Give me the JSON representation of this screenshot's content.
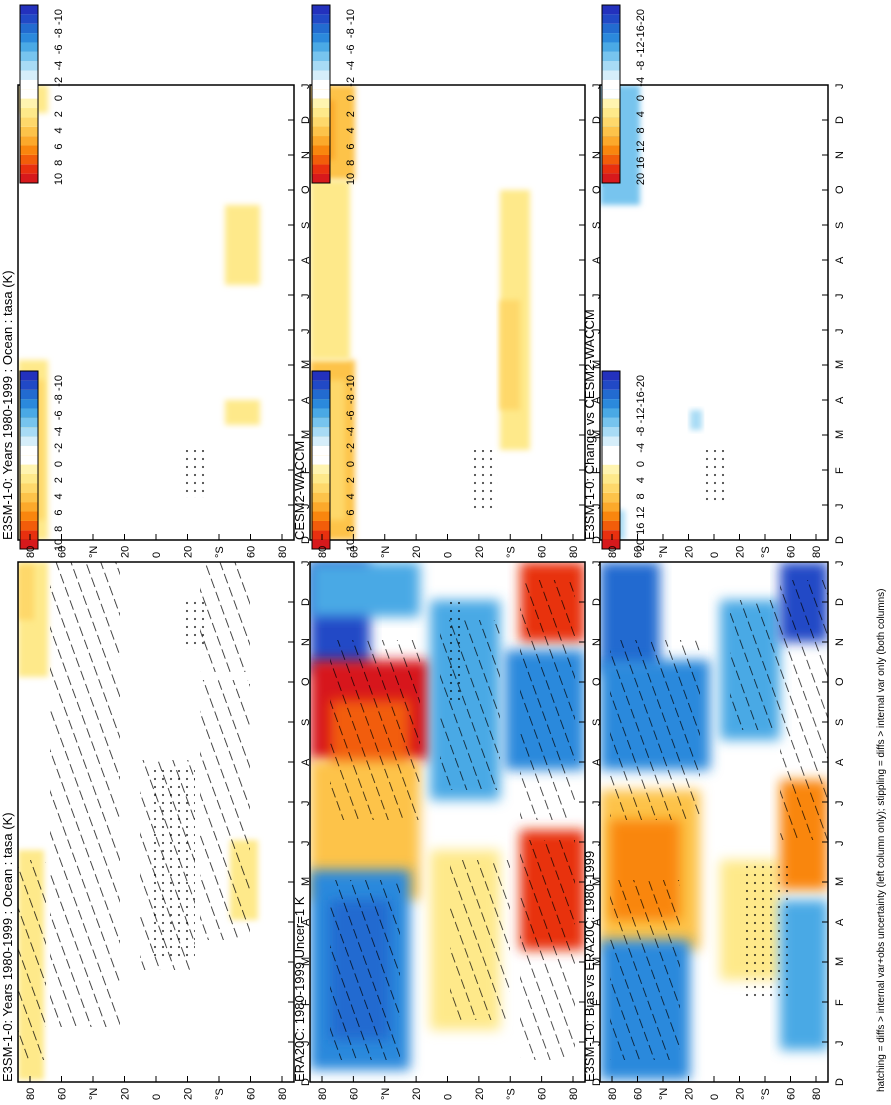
{
  "footnote": "hatching = diffs > internal var+obs uncertainty (left column only); stippling = diffs > internal var only (both columns)",
  "months": [
    "D",
    "J",
    "F",
    "M",
    "A",
    "M",
    "J",
    "J",
    "A",
    "S",
    "O",
    "N",
    "D",
    "J"
  ],
  "lat_labels": [
    "80",
    "60",
    "°N",
    "20",
    "0",
    "20",
    "°S",
    "60",
    "80"
  ],
  "palette": {
    "t10": [
      "#d7191c",
      "#e8300f",
      "#f25d0a",
      "#f9860e",
      "#fca92b",
      "#fdc34a",
      "#fed86b",
      "#fee98a",
      "#fff4b0",
      "#ffffff",
      "#ffffff",
      "#d6eefa",
      "#a8dbf5",
      "#77c4ee",
      "#4aa9e5",
      "#2b89dc",
      "#226bd0",
      "#2149c6",
      "#2331bd"
    ],
    "t20": [
      "#d7191c",
      "#e8300f",
      "#f25d0a",
      "#f9860e",
      "#fca92b",
      "#fdc34a",
      "#fed86b",
      "#fee98a",
      "#fff4b0",
      "#ffffff",
      "#ffffff",
      "#d6eefa",
      "#a8dbf5",
      "#77c4ee",
      "#4aa9e5",
      "#2b89dc",
      "#226bd0",
      "#2149c6",
      "#2331bd"
    ]
  },
  "colorbars": [
    {
      "ticks": [
        "10",
        "8",
        "6",
        "4",
        "2",
        "0",
        "-2",
        "-4",
        "-6",
        "-8",
        "-10"
      ],
      "palette": "t10"
    },
    {
      "ticks": [
        "10",
        "8",
        "6",
        "4",
        "2",
        "0",
        "-2",
        "-4",
        "-6",
        "-8",
        "-10"
      ],
      "palette": "t10"
    },
    {
      "ticks": [
        "20",
        "16",
        "12",
        "8",
        "4",
        "0",
        "-4",
        "-8",
        "-12",
        "-16",
        "-20"
      ],
      "palette": "t20"
    },
    {
      "ticks": [
        "10",
        "8",
        "6",
        "4",
        "2",
        "0",
        "-2",
        "-4",
        "-6",
        "-8",
        "-10"
      ],
      "palette": "t10"
    },
    {
      "ticks": [
        "10",
        "8",
        "6",
        "4",
        "2",
        "0",
        "-2",
        "-4",
        "-6",
        "-8",
        "-10"
      ],
      "palette": "t10"
    },
    {
      "ticks": [
        "20",
        "16",
        "12",
        "8",
        "4",
        "0",
        "-4",
        "-8",
        "-12",
        "-16",
        "-20"
      ],
      "palette": "t20"
    }
  ],
  "chart_data": [
    {
      "type": "heatmap",
      "title": "E3SM-1-0: Years 1980-1999 : Ocean : tasa (K)",
      "x": [
        "D",
        "J",
        "F",
        "M",
        "A",
        "M",
        "J",
        "J",
        "A",
        "S",
        "O",
        "N",
        "D",
        "J"
      ],
      "y": [
        "80",
        "60",
        "°N",
        "20",
        "0",
        "20",
        "°S",
        "60",
        "80"
      ],
      "range": [
        -10,
        10
      ],
      "note": "hatched and stippled"
    },
    {
      "type": "heatmap",
      "title": "ERA20C: 1980-1999 Uncer=1 K",
      "x": [
        "D",
        "J",
        "F",
        "M",
        "A",
        "M",
        "J",
        "J",
        "A",
        "S",
        "O",
        "N",
        "D",
        "J"
      ],
      "y": [
        "80",
        "60",
        "°N",
        "20",
        "0",
        "20",
        "°S",
        "60",
        "80"
      ],
      "range": [
        -10,
        10
      ]
    },
    {
      "type": "heatmap",
      "title": "E3SM-1-0: Bias vs ERA20C: 1980-1999",
      "x": [
        "D",
        "J",
        "F",
        "M",
        "A",
        "M",
        "J",
        "J",
        "A",
        "S",
        "O",
        "N",
        "D",
        "J"
      ],
      "y": [
        "80",
        "60",
        "°N",
        "20",
        "0",
        "20",
        "°S",
        "60",
        "80"
      ],
      "range": [
        -20,
        20
      ]
    },
    {
      "type": "heatmap",
      "title": "E3SM-1-0: Years 1980-1999 : Ocean : tasa (K)",
      "x": [
        "D",
        "J",
        "F",
        "M",
        "A",
        "M",
        "J",
        "J",
        "A",
        "S",
        "O",
        "N",
        "D",
        "J"
      ],
      "y": [
        "80",
        "60",
        "°N",
        "20",
        "0",
        "20",
        "°S",
        "60",
        "80"
      ],
      "range": [
        -10,
        10
      ]
    },
    {
      "type": "heatmap",
      "title": "CESM2-WACCM",
      "x": [
        "D",
        "J",
        "F",
        "M",
        "A",
        "M",
        "J",
        "J",
        "A",
        "S",
        "O",
        "N",
        "D",
        "J"
      ],
      "y": [
        "80",
        "60",
        "°N",
        "20",
        "0",
        "20",
        "°S",
        "60",
        "80"
      ],
      "range": [
        -10,
        10
      ]
    },
    {
      "type": "heatmap",
      "title": "E3SM-1-0: Change vs CESM2-WACCM",
      "x": [
        "D",
        "J",
        "F",
        "M",
        "A",
        "M",
        "J",
        "J",
        "A",
        "S",
        "O",
        "N",
        "D",
        "J"
      ],
      "y": [
        "80",
        "60",
        "°N",
        "20",
        "0",
        "20",
        "°S",
        "60",
        "80"
      ],
      "range": [
        -20,
        20
      ]
    }
  ]
}
